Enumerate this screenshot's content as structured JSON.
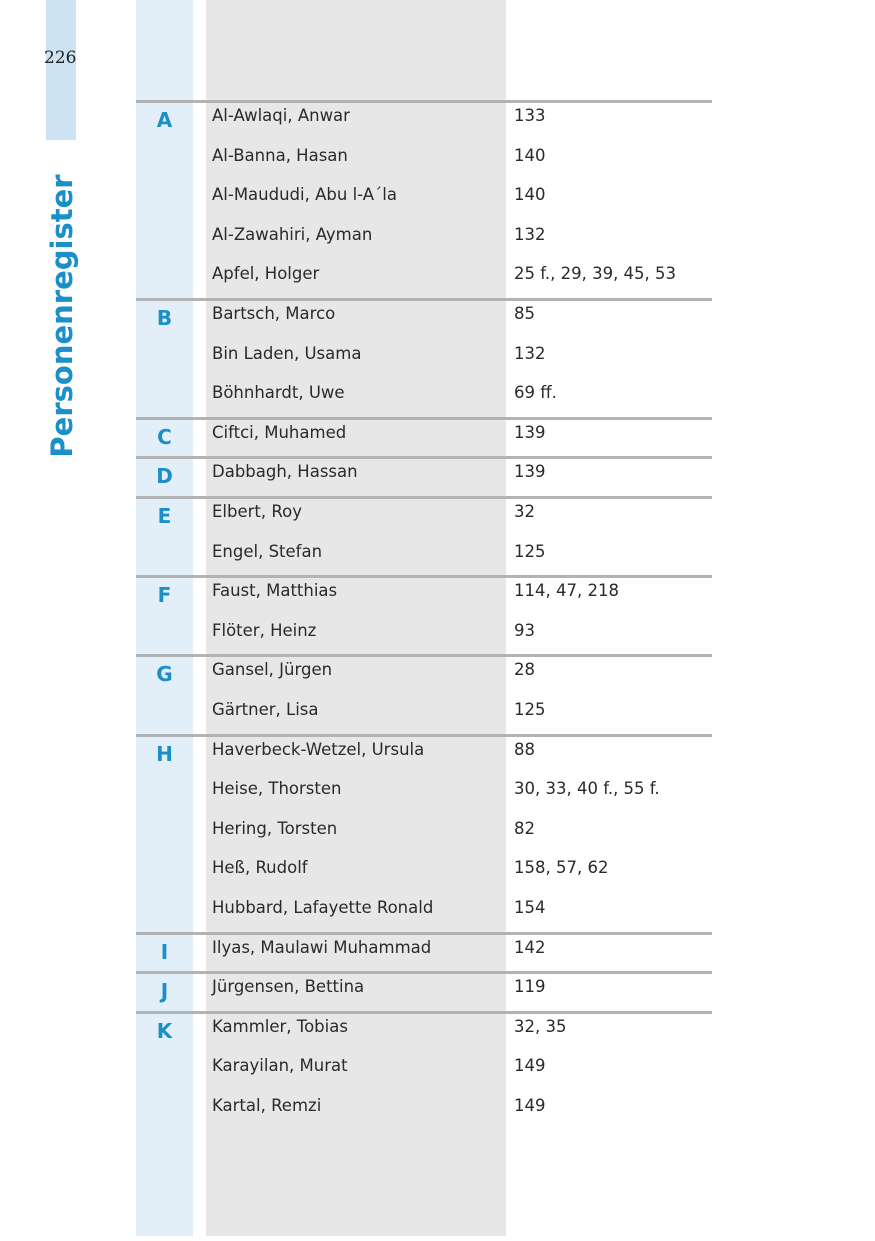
{
  "page_number": "226",
  "section_title": "Personenregister",
  "colors": {
    "accent": "#1b8fca",
    "letter_column": "#e2eff8",
    "name_column": "#e7e7e7",
    "rule": "#b3b3b3"
  },
  "groups": [
    {
      "letter": "A",
      "entries": [
        {
          "name": "Al-Awlaqi, Anwar",
          "pages": "133"
        },
        {
          "name": "Al-Banna, Hasan",
          "pages": "140"
        },
        {
          "name": "Al-Maududi, Abu l-A´la",
          "pages": "140"
        },
        {
          "name": "Al-Zawahiri, Ayman",
          "pages": "132"
        },
        {
          "name": "Apfel, Holger",
          "pages": "25 f., 29, 39, 45, 53"
        }
      ]
    },
    {
      "letter": "B",
      "entries": [
        {
          "name": "Bartsch, Marco",
          "pages": "85"
        },
        {
          "name": "Bin Laden, Usama",
          "pages": "132"
        },
        {
          "name": "Böhnhardt, Uwe",
          "pages": "69 ff."
        }
      ]
    },
    {
      "letter": "C",
      "entries": [
        {
          "name": "Ciftci, Muhamed",
          "pages": "139"
        }
      ]
    },
    {
      "letter": "D",
      "entries": [
        {
          "name": "Dabbagh, Hassan",
          "pages": "139"
        }
      ]
    },
    {
      "letter": "E",
      "entries": [
        {
          "name": "Elbert, Roy",
          "pages": "32"
        },
        {
          "name": "Engel, Stefan",
          "pages": "125"
        }
      ]
    },
    {
      "letter": "F",
      "entries": [
        {
          "name": "Faust, Matthias",
          "pages": "114, 47, 218"
        },
        {
          "name": "Flöter, Heinz",
          "pages": "93"
        }
      ]
    },
    {
      "letter": "G",
      "entries": [
        {
          "name": "Gansel, Jürgen",
          "pages": "28"
        },
        {
          "name": "Gärtner, Lisa",
          "pages": "125"
        }
      ]
    },
    {
      "letter": "H",
      "entries": [
        {
          "name": "Haverbeck-Wetzel, Ursula",
          "pages": "88"
        },
        {
          "name": "Heise, Thorsten",
          "pages": "30, 33, 40 f., 55 f."
        },
        {
          "name": "Hering, Torsten",
          "pages": "82"
        },
        {
          "name": "Heß, Rudolf",
          "pages": "158, 57, 62"
        },
        {
          "name": "Hubbard, Lafayette Ronald",
          "pages": "154"
        }
      ]
    },
    {
      "letter": "I",
      "entries": [
        {
          "name": "Ilyas, Maulawi Muhammad",
          "pages": "142"
        }
      ]
    },
    {
      "letter": "J",
      "entries": [
        {
          "name": "Jürgensen, Bettina",
          "pages": "119"
        }
      ]
    },
    {
      "letter": "K",
      "entries": [
        {
          "name": "Kammler, Tobias",
          "pages": "32, 35"
        },
        {
          "name": "Karayilan, Murat",
          "pages": "149"
        },
        {
          "name": "Kartal, Remzi",
          "pages": "149"
        }
      ]
    }
  ]
}
